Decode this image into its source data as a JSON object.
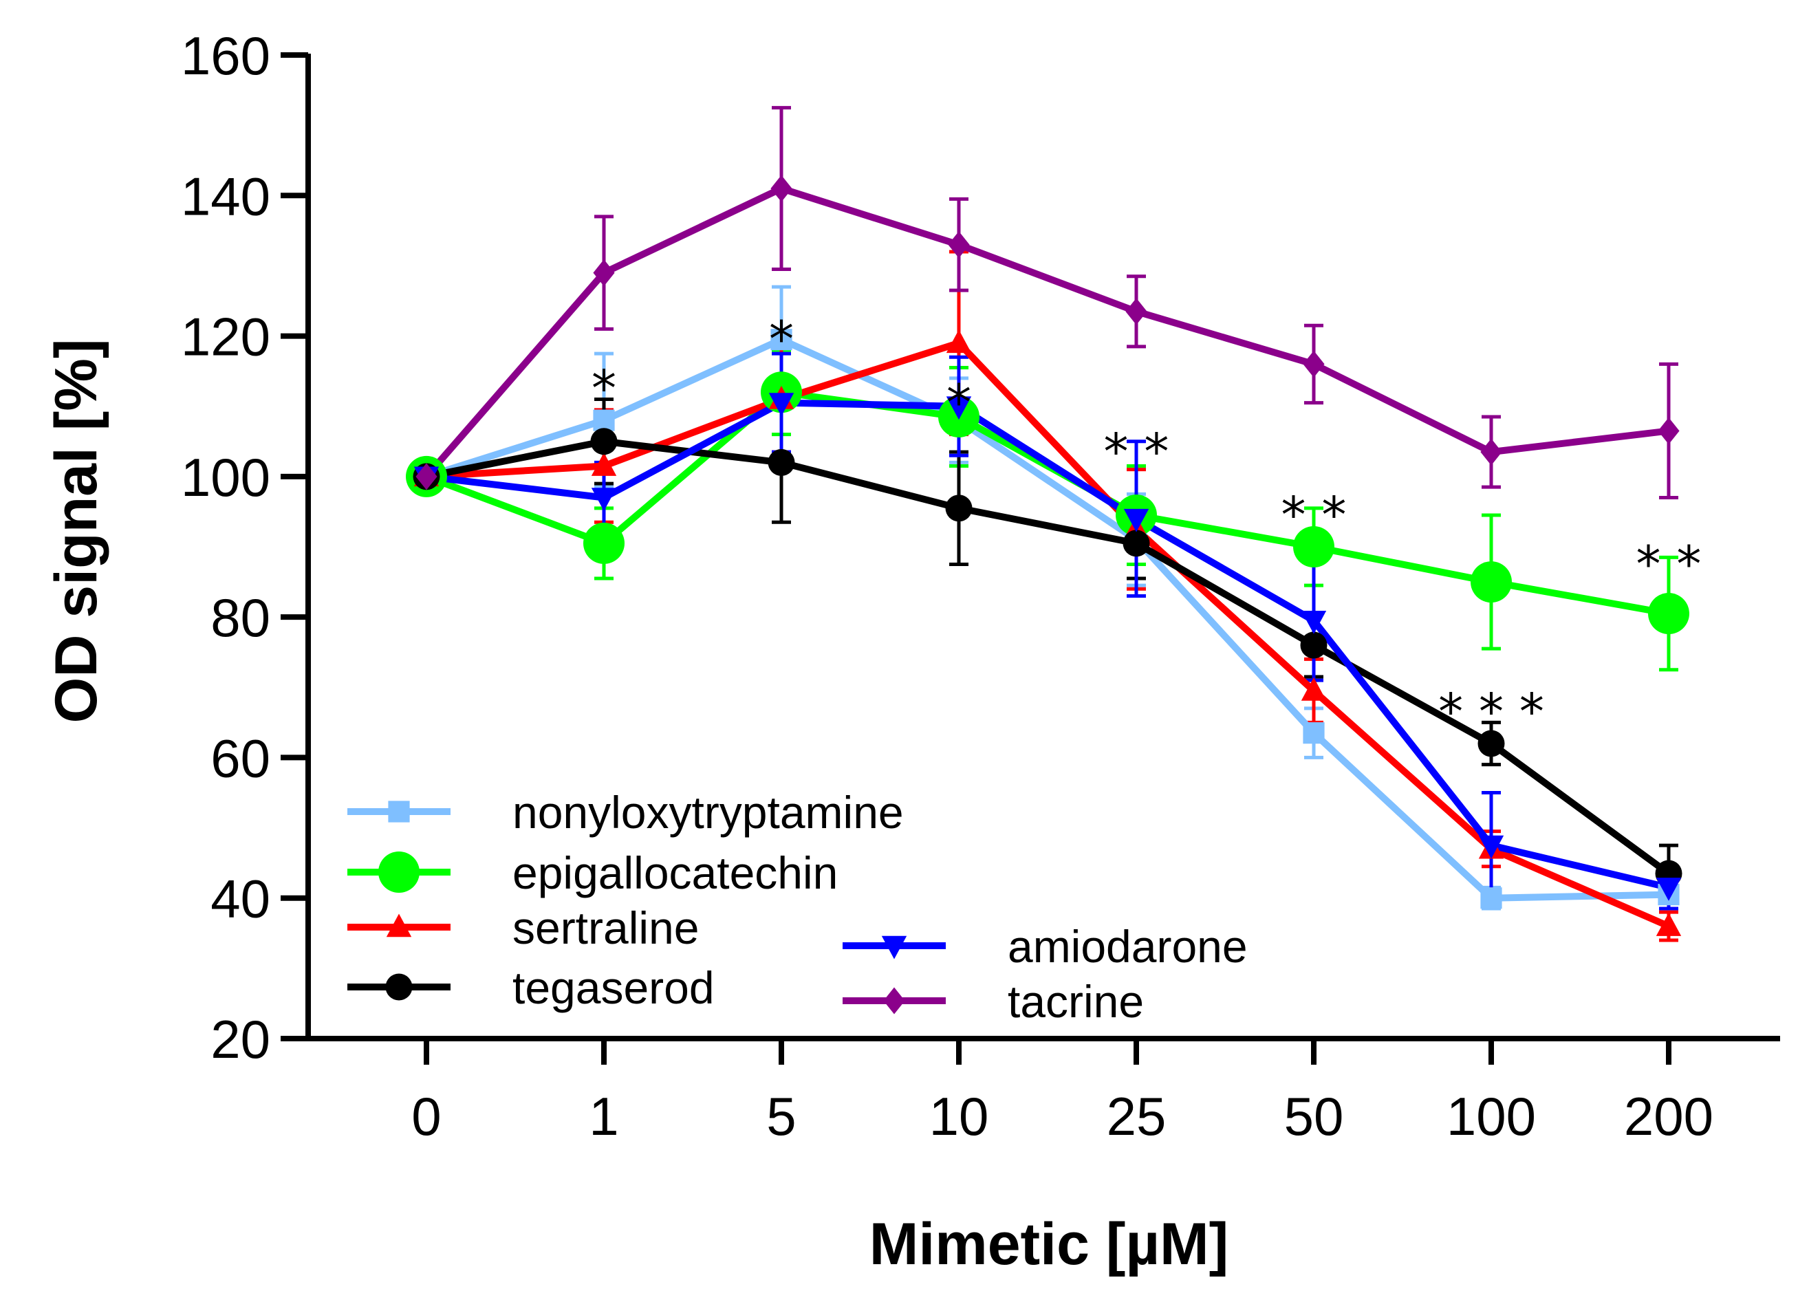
{
  "chart_data": {
    "type": "line",
    "title": "",
    "xlabel": "Mimetic [µM]",
    "ylabel": "OD signal [%]",
    "categories": [
      "0",
      "1",
      "5",
      "10",
      "25",
      "50",
      "100",
      "200"
    ],
    "ylim": [
      20,
      160
    ],
    "yticks": [
      20,
      40,
      60,
      80,
      100,
      120,
      140,
      160
    ],
    "grid": false,
    "legend_position": "bottom-left",
    "series": [
      {
        "name": "nonyloxytryptamine",
        "color": "#7fbfff",
        "marker": "square",
        "values": [
          100,
          108,
          119.5,
          108,
          91,
          63.5,
          40,
          40.5
        ],
        "errors": [
          0,
          9.5,
          7.5,
          6,
          6.5,
          3.5,
          1.5,
          2
        ]
      },
      {
        "name": "epigallocatechin",
        "color": "#00ff00",
        "marker": "circle",
        "values": [
          100,
          90.5,
          112,
          108.5,
          94.5,
          90,
          85,
          80.5
        ],
        "errors": [
          0,
          5,
          6,
          7,
          7,
          5.5,
          9.5,
          8
        ]
      },
      {
        "name": "sertraline",
        "color": "#ff0000",
        "marker": "triangle-up",
        "values": [
          100,
          101.5,
          111,
          119,
          92.5,
          69.5,
          47,
          36
        ],
        "errors": [
          0,
          8,
          7.5,
          13,
          8.5,
          4.5,
          2.5,
          2
        ]
      },
      {
        "name": "tegaserod",
        "color": "#000000",
        "marker": "circle",
        "values": [
          100,
          105,
          102,
          95.5,
          90.5,
          76,
          62,
          43.5
        ],
        "errors": [
          0,
          6,
          8.5,
          8,
          5,
          4.5,
          3,
          4
        ]
      },
      {
        "name": "amiodarone",
        "color": "#0000ff",
        "marker": "triangle-down",
        "values": [
          100,
          97,
          110.5,
          110,
          94,
          79.5,
          47.5,
          41.5
        ],
        "errors": [
          0,
          5,
          7,
          7,
          11,
          8.5,
          7.5,
          3
        ]
      },
      {
        "name": "tacrine",
        "color": "#8b008b",
        "marker": "diamond",
        "values": [
          100,
          129,
          141,
          133,
          123.5,
          116,
          103.5,
          106.5
        ],
        "errors": [
          0,
          8,
          11.5,
          6.5,
          5,
          5.5,
          5,
          9.5
        ]
      }
    ],
    "annotations": [
      {
        "text": "*",
        "category": "1",
        "y": 115
      },
      {
        "text": "*",
        "category": "5",
        "y": 122
      },
      {
        "text": "*",
        "category": "10",
        "y": 113
      },
      {
        "text": "* *",
        "category": "25",
        "y": 106
      },
      {
        "text": "* *",
        "category": "50",
        "y": 97
      },
      {
        "text": "* * *",
        "category": "100",
        "y": 69
      },
      {
        "text": "* *",
        "category": "200",
        "y": 90
      }
    ]
  }
}
